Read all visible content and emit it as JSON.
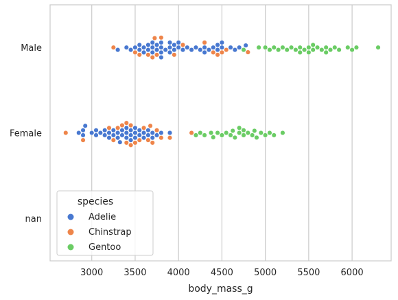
{
  "chart_data": {
    "type": "scatter",
    "subtype": "swarm",
    "title": "",
    "xlabel": "body_mass_g",
    "ylabel": "",
    "xlim": [
      2520,
      6450
    ],
    "xticks": [
      3000,
      3500,
      4000,
      4500,
      5000,
      5500,
      6000
    ],
    "xtick_labels": [
      "3000",
      "3500",
      "4000",
      "4500",
      "5000",
      "5500",
      "6000"
    ],
    "categories": [
      "Male",
      "Female",
      "nan"
    ],
    "grid": "vertical",
    "legend": {
      "title": "species",
      "placement": "lower-left",
      "entries": [
        "Adelie",
        "Chinstrap",
        "Gentoo"
      ]
    },
    "colors": {
      "Adelie": "#4878d0",
      "Chinstrap": "#ee854a",
      "Gentoo": "#6acc64",
      "grid": "#cccccc",
      "frame": "#cccccc"
    },
    "series": [
      {
        "name": "Adelie",
        "points": {
          "Male": [
            3300,
            3400,
            3450,
            3500,
            3550,
            3550,
            3600,
            3600,
            3650,
            3650,
            3700,
            3700,
            3700,
            3750,
            3750,
            3800,
            3800,
            3800,
            3800,
            3850,
            3900,
            3900,
            3900,
            3950,
            3950,
            4000,
            4000,
            4050,
            4100,
            4150,
            4200,
            4250,
            4300,
            4300,
            4350,
            4400,
            4450,
            4450,
            4500,
            4500,
            4600,
            4650,
            4700,
            4775
          ],
          "Female": [
            2850,
            2900,
            2900,
            2925,
            3000,
            3050,
            3050,
            3100,
            3150,
            3150,
            3200,
            3200,
            3250,
            3250,
            3300,
            3300,
            3325,
            3350,
            3350,
            3400,
            3400,
            3400,
            3450,
            3450,
            3450,
            3500,
            3500,
            3500,
            3550,
            3550,
            3600,
            3600,
            3650,
            3650,
            3700,
            3700,
            3750,
            3800,
            3900
          ]
        }
      },
      {
        "name": "Chinstrap",
        "points": {
          "Male": [
            3250,
            3500,
            3550,
            3650,
            3700,
            3725,
            3750,
            3800,
            3950,
            4050,
            4300,
            4400,
            4450,
            4500,
            4550,
            4800
          ],
          "Female": [
            2700,
            2900,
            3200,
            3250,
            3300,
            3350,
            3400,
            3400,
            3450,
            3450,
            3500,
            3550,
            3600,
            3650,
            3675,
            3700,
            3750,
            3800,
            3900,
            4150
          ]
        }
      },
      {
        "name": "Gentoo",
        "points": {
          "Male": [
            4750,
            4925,
            5000,
            5050,
            5100,
            5150,
            5200,
            5250,
            5300,
            5350,
            5400,
            5400,
            5450,
            5500,
            5500,
            5550,
            5550,
            5600,
            5650,
            5700,
            5700,
            5750,
            5800,
            5850,
            5950,
            6000,
            6050,
            6300
          ],
          "Female": [
            4200,
            4250,
            4300,
            4375,
            4400,
            4450,
            4500,
            4550,
            4600,
            4625,
            4650,
            4700,
            4700,
            4750,
            4750,
            4800,
            4850,
            4875,
            4900,
            4950,
            5000,
            5050,
            5100,
            5200
          ]
        }
      }
    ]
  }
}
